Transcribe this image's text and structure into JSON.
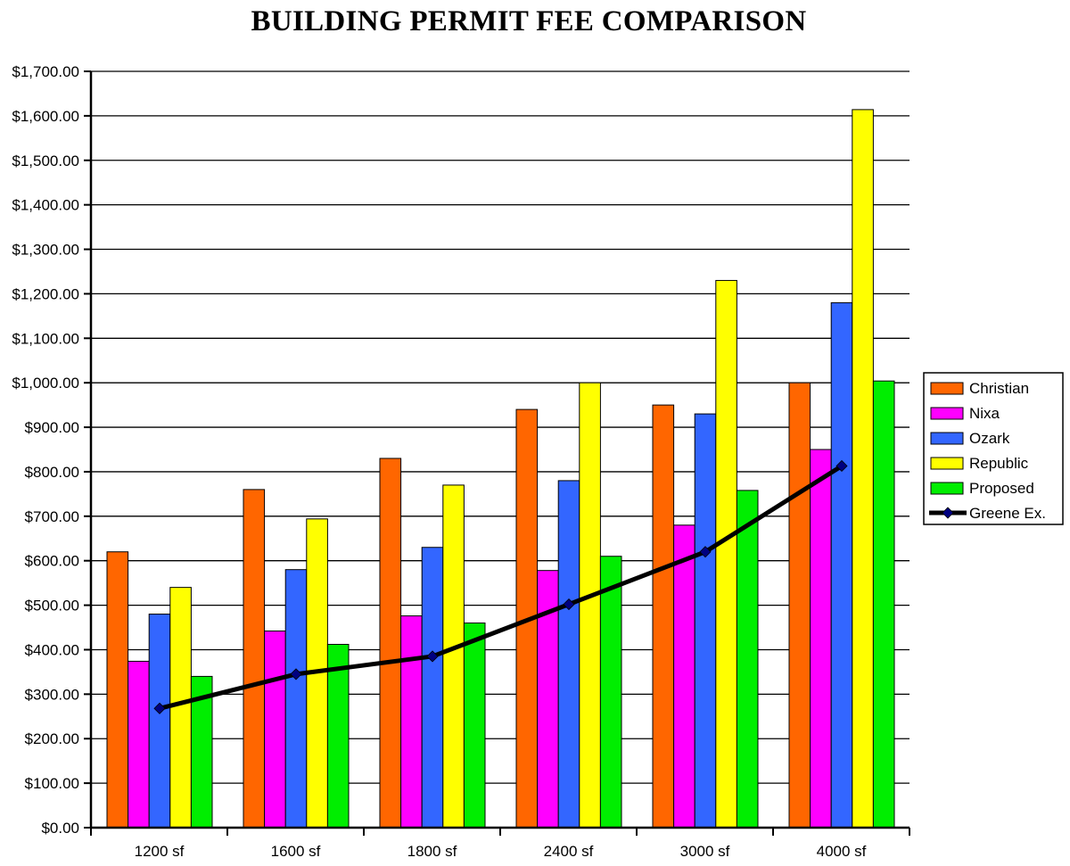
{
  "chart_data": {
    "type": "bar",
    "title": "BUILDING PERMIT FEE COMPARISON",
    "xlabel": "",
    "ylabel": "",
    "categories": [
      "1200 sf",
      "1600 sf",
      "1800 sf",
      "2400 sf",
      "3000 sf",
      "4000 sf"
    ],
    "ylim": [
      0,
      1700
    ],
    "y_ticks": [
      {
        "value": 0,
        "label": "$0.00"
      },
      {
        "value": 100,
        "label": "$100.00"
      },
      {
        "value": 200,
        "label": "$200.00"
      },
      {
        "value": 300,
        "label": "$300.00"
      },
      {
        "value": 400,
        "label": "$400.00"
      },
      {
        "value": 500,
        "label": "$500.00"
      },
      {
        "value": 600,
        "label": "$600.00"
      },
      {
        "value": 700,
        "label": "$700.00"
      },
      {
        "value": 800,
        "label": "$800.00"
      },
      {
        "value": 900,
        "label": "$900.00"
      },
      {
        "value": 1000,
        "label": "$1,000.00"
      },
      {
        "value": 1100,
        "label": "$1,100.00"
      },
      {
        "value": 1200,
        "label": "$1,200.00"
      },
      {
        "value": 1300,
        "label": "$1,300.00"
      },
      {
        "value": 1400,
        "label": "$1,400.00"
      },
      {
        "value": 1500,
        "label": "$1,500.00"
      },
      {
        "value": 1600,
        "label": "$1,600.00"
      },
      {
        "value": 1700,
        "label": "$1,700.00"
      }
    ],
    "grid": true,
    "legend_position": "right",
    "series": [
      {
        "name": "Christian",
        "type": "bar",
        "color": "#FF6600",
        "values": [
          620,
          760,
          830,
          940,
          950,
          1000
        ]
      },
      {
        "name": "Nixa",
        "type": "bar",
        "color": "#FF00FF",
        "values": [
          374,
          442,
          476,
          578,
          680,
          850
        ]
      },
      {
        "name": "Ozark",
        "type": "bar",
        "color": "#3366FF",
        "values": [
          480,
          580,
          630,
          780,
          930,
          1180
        ]
      },
      {
        "name": "Republic",
        "type": "bar",
        "color": "#FFFF00",
        "values": [
          540,
          694,
          770,
          1000,
          1230,
          1614
        ]
      },
      {
        "name": "Proposed",
        "type": "bar",
        "color": "#00EE00",
        "values": [
          340,
          412,
          460,
          610,
          758,
          1004
        ]
      },
      {
        "name": "Greene Ex.",
        "type": "line",
        "color": "#000000",
        "marker_color": "#000080",
        "values": [
          268,
          345,
          385,
          502,
          620,
          813
        ]
      }
    ]
  }
}
